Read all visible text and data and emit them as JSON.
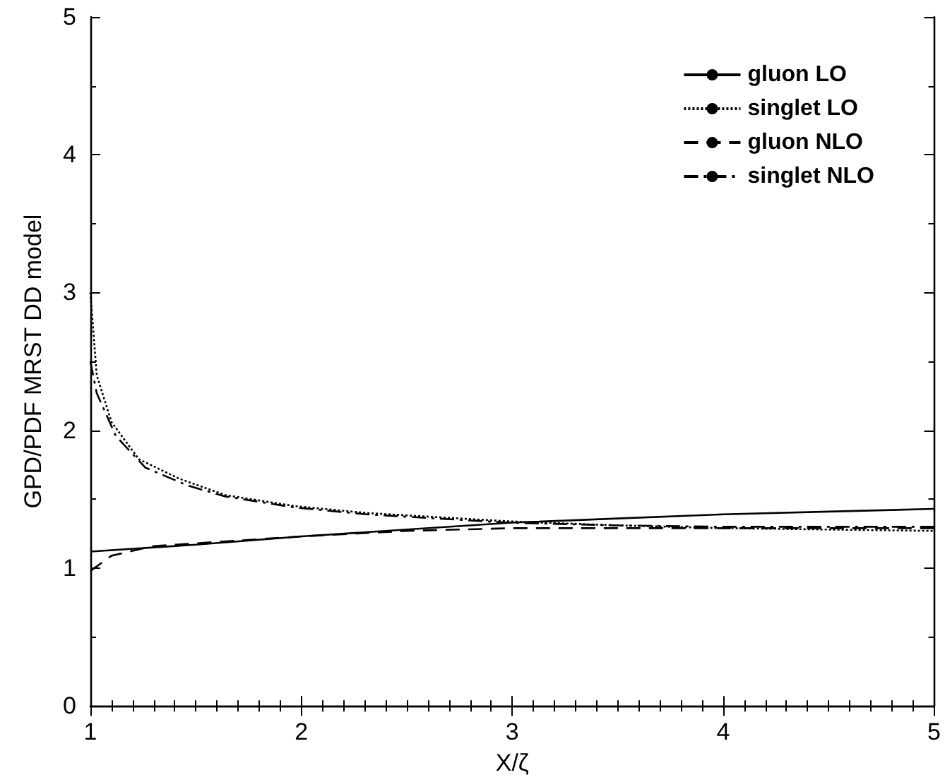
{
  "chart_data": {
    "type": "line",
    "xlabel": "X/ζ",
    "ylabel": "GPD/PDF MRST DD model",
    "xlim": [
      1,
      5
    ],
    "ylim": [
      0,
      5
    ],
    "xticks": [
      1,
      2,
      3,
      4,
      5
    ],
    "yticks": [
      0,
      1,
      2,
      3,
      4,
      5
    ],
    "grid": false,
    "legend": "top right",
    "marker": "none",
    "series": [
      {
        "name": "gluon LO",
        "color": "#000000",
        "line_style": "solid",
        "x": [
          1,
          1.5,
          2,
          2.5,
          3,
          3.5,
          4,
          4.5,
          5
        ],
        "values": [
          1.12,
          1.17,
          1.23,
          1.28,
          1.33,
          1.36,
          1.39,
          1.41,
          1.43
        ]
      },
      {
        "name": "singlet LO",
        "color": "#000000",
        "line_style": "dotted",
        "x": [
          1,
          1.03,
          1.1,
          1.23,
          1.42,
          1.64,
          1.97,
          2.31,
          2.98,
          3.5,
          4,
          4.5,
          5
        ],
        "values": [
          3.0,
          2.4,
          2.06,
          1.79,
          1.65,
          1.53,
          1.45,
          1.4,
          1.34,
          1.31,
          1.29,
          1.28,
          1.27
        ]
      },
      {
        "name": "gluon NLO",
        "color": "#000000",
        "line_style": "dashed",
        "x": [
          1,
          1.1,
          1.3,
          1.5,
          2,
          2.5,
          3,
          3.5,
          4,
          4.5,
          5
        ],
        "values": [
          0.98,
          1.09,
          1.16,
          1.18,
          1.23,
          1.27,
          1.29,
          1.29,
          1.29,
          1.29,
          1.29
        ]
      },
      {
        "name": "singlet NLO",
        "color": "#000000",
        "line_style": "dashdot",
        "x": [
          1,
          1.03,
          1.12,
          1.26,
          1.46,
          1.64,
          1.97,
          2.31,
          2.98,
          3.5,
          4,
          4.5,
          5
        ],
        "values": [
          2.5,
          2.27,
          1.96,
          1.73,
          1.6,
          1.52,
          1.44,
          1.39,
          1.33,
          1.31,
          1.3,
          1.3,
          1.3
        ]
      }
    ]
  }
}
